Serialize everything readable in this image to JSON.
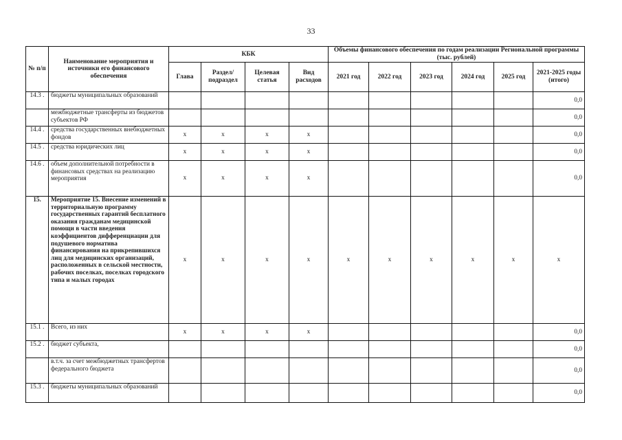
{
  "page_number": "33",
  "header": {
    "num": "№ п/п",
    "name": "Наименование мероприятия и источники его финансового обеспечения",
    "kbk": "КБК",
    "kbk_cols": [
      "Глава",
      "Раздел/ подраздел",
      "Целевая статья",
      "Вид расходов"
    ],
    "funding": "Объемы финансового обеспечения по годам реализации Региональной программы (тыс. рублей)",
    "year_cols": [
      "2021 год",
      "2022 год",
      "2023 год",
      "2024 год",
      "2025 год",
      "2021-2025 годы (итого)"
    ]
  },
  "rows": [
    {
      "num": "14.3 .",
      "name": "бюджеты муниципальных образований",
      "kbk": [
        "",
        "",
        "",
        ""
      ],
      "years": [
        "",
        "",
        "",
        "",
        "",
        "0,0"
      ]
    },
    {
      "num": "",
      "name": "межбюджетные трансферты из бюджетов субъектов РФ",
      "kbk": [
        "",
        "",
        "",
        ""
      ],
      "years": [
        "",
        "",
        "",
        "",
        "",
        "0,0"
      ]
    },
    {
      "num": "14.4 .",
      "name": "средства государственных внебюджетных фондов",
      "kbk": [
        "х",
        "х",
        "х",
        "х"
      ],
      "years": [
        "",
        "",
        "",
        "",
        "",
        "0,0"
      ]
    },
    {
      "num": "14.5 .",
      "name": "средства юридических лиц",
      "kbk": [
        "х",
        "х",
        "х",
        "х"
      ],
      "years": [
        "",
        "",
        "",
        "",
        "",
        "0,0"
      ]
    },
    {
      "num": "14.6 .",
      "name": "объем дополнительной потребности в финансовых средствах на реализацию мероприятия",
      "kbk": [
        "х",
        "х",
        "х",
        "х"
      ],
      "years": [
        "",
        "",
        "",
        "",
        "",
        "0,0"
      ]
    },
    {
      "num": "15.",
      "bold": true,
      "name": "Мероприятие 15. Внесение изменений в территориальную программу государственных гарантий бесплатного оказания гражданам медицинской помощи в части введения коэффициентов дифференциации для подушевого норматива финансирования на прикрепившихся лиц для медицинских организаций, расположенных в сельской местности, рабочих поселках, поселках городского типа и малых городах",
      "kbk": [
        "х",
        "х",
        "х",
        "х"
      ],
      "years": [
        "х",
        "х",
        "х",
        "х",
        "х",
        "х"
      ]
    },
    {
      "num": "15.1 .",
      "name": "Всего, из них",
      "kbk": [
        "х",
        "х",
        "х",
        "х"
      ],
      "years": [
        "",
        "",
        "",
        "",
        "",
        "0,0"
      ]
    },
    {
      "num": "15.2 .",
      "name": "бюджет субъекта,",
      "kbk": [
        "",
        "",
        "",
        ""
      ],
      "years": [
        "",
        "",
        "",
        "",
        "",
        "0,0"
      ]
    },
    {
      "num": "",
      "name": "в.т.ч. за счет межбюджетных трансфертов федерального бюджета",
      "kbk": [
        "",
        "",
        "",
        ""
      ],
      "years": [
        "",
        "",
        "",
        "",
        "",
        "0,0"
      ]
    },
    {
      "num": "15.3 .",
      "name": "бюджеты муниципальных образований",
      "kbk": [
        "",
        "",
        "",
        ""
      ],
      "years": [
        "",
        "",
        "",
        "",
        "",
        "0,0"
      ]
    }
  ]
}
